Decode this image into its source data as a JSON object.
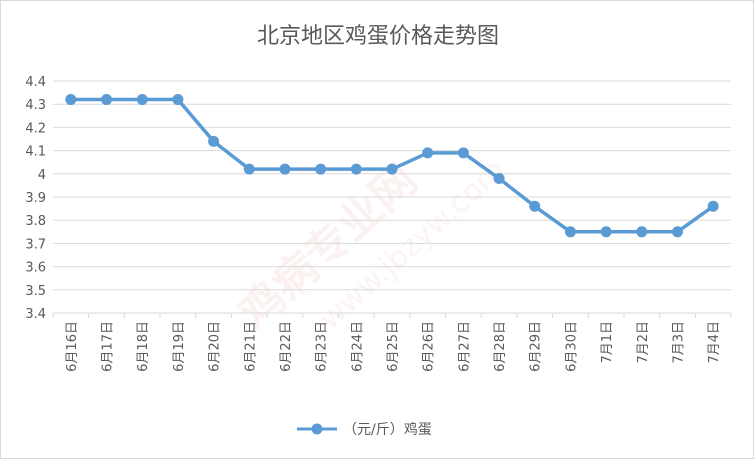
{
  "chart_data": {
    "type": "line",
    "title": "北京地区鸡蛋价格走势图",
    "categories": [
      "6月16日",
      "6月17日",
      "6月18日",
      "6月19日",
      "6月20日",
      "6月21日",
      "6月22日",
      "6月23日",
      "6月24日",
      "6月25日",
      "6月26日",
      "6月27日",
      "6月28日",
      "6月29日",
      "6月30日",
      "7月1日",
      "7月2日",
      "7月3日",
      "7月4日"
    ],
    "series": [
      {
        "name": "（元/斤）鸡蛋",
        "color": "#5b9bd5",
        "values": [
          4.32,
          4.32,
          4.32,
          4.32,
          4.14,
          4.02,
          4.02,
          4.02,
          4.02,
          4.02,
          4.09,
          4.09,
          3.98,
          3.86,
          3.75,
          3.75,
          3.75,
          3.75,
          3.86
        ]
      }
    ],
    "ylim": [
      3.4,
      4.4
    ],
    "yticks": [
      "3.4",
      "3.5",
      "3.6",
      "3.7",
      "3.8",
      "3.9",
      "4",
      "4.1",
      "4.2",
      "4.3",
      "4.4"
    ],
    "grid": true,
    "legend_position": "bottom",
    "watermark": {
      "cn": "鸡病专业网",
      "url": "www.jbzyw.com"
    }
  }
}
